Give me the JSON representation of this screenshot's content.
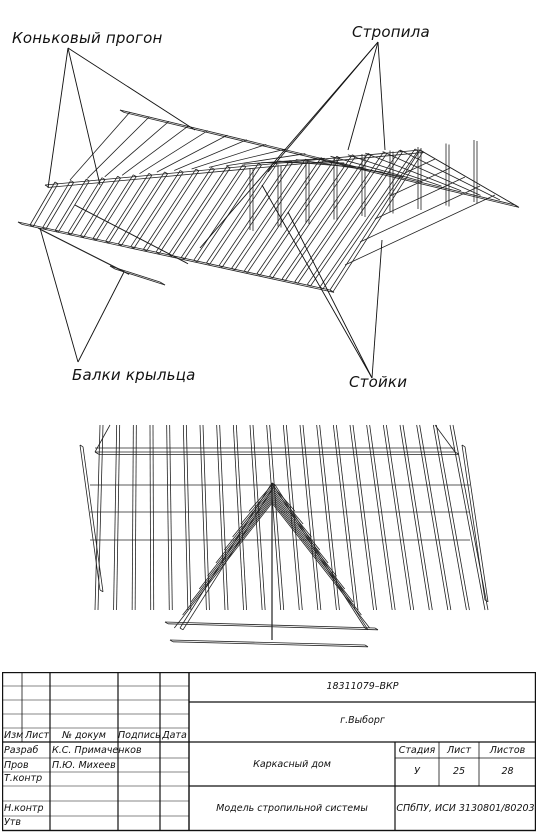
{
  "callouts": {
    "ridge_purlin": "Коньковый прогон",
    "rafters": "Стропила",
    "porch_beams": "Балки крыльца",
    "posts": "Стойки"
  },
  "title_block": {
    "doc_code": "18311079–ВКР",
    "location": "г.Выборг",
    "headers": {
      "change": "Изм",
      "sheet": "Лист",
      "doc_no": "№ докум",
      "signature": "Подпись",
      "date": "Дата"
    },
    "roles": {
      "developed": "Разраб",
      "checked": "Пров",
      "tech_control": "Т.контр",
      "norm_control": "Н.контр",
      "approved": "Утв"
    },
    "names": {
      "developed": "К.С. Примаченков",
      "checked": "П.Ю. Михеев"
    },
    "project_title": "Каркасный дом",
    "sheet_title": "Модель стропильной системы",
    "stage_label": "Стадия",
    "sheet_label": "Лист",
    "sheets_label": "Листов",
    "stage_value": "У",
    "sheet_value": "25",
    "sheets_value": "28",
    "organization": "СПбПУ, ИСИ 3130801/80203"
  }
}
